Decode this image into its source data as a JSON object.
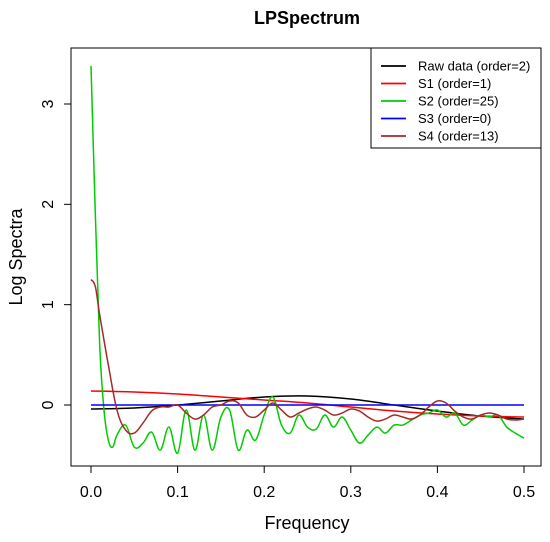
{
  "chart_data": {
    "type": "line",
    "title": "LPSpectrum",
    "xlabel": "Frequency",
    "ylabel": "Log Spectra",
    "xlim": [
      0,
      0.5
    ],
    "ylim": [
      -0.5,
      3.5
    ],
    "x_ticks": [
      0.0,
      0.1,
      0.2,
      0.3,
      0.4,
      0.5
    ],
    "x_tick_labels": [
      "0.0",
      "0.1",
      "0.2",
      "0.3",
      "0.4",
      "0.5"
    ],
    "y_ticks": [
      0,
      1,
      2,
      3
    ],
    "y_tick_labels": [
      "0",
      "1",
      "2",
      "3"
    ],
    "grid": false,
    "legend_position": "top-right",
    "series": [
      {
        "name": "Raw data (order=2)",
        "color": "#000000",
        "x": [
          0.0,
          0.05,
          0.1,
          0.15,
          0.2,
          0.25,
          0.3,
          0.35,
          0.4,
          0.45,
          0.5
        ],
        "values": [
          -0.04,
          -0.03,
          0.0,
          0.04,
          0.08,
          0.09,
          0.06,
          0.0,
          -0.06,
          -0.11,
          -0.14
        ]
      },
      {
        "name": "S1 (order=1)",
        "color": "#ff0000",
        "x": [
          0.0,
          0.05,
          0.1,
          0.15,
          0.2,
          0.25,
          0.3,
          0.35,
          0.4,
          0.45,
          0.5
        ],
        "values": [
          0.14,
          0.13,
          0.11,
          0.08,
          0.05,
          0.02,
          -0.02,
          -0.06,
          -0.09,
          -0.11,
          -0.12
        ]
      },
      {
        "name": "S2 (order=25)",
        "color": "#00cc00",
        "x": [
          0.0,
          0.005,
          0.01,
          0.015,
          0.02,
          0.025,
          0.03,
          0.04,
          0.05,
          0.06,
          0.07,
          0.08,
          0.09,
          0.1,
          0.11,
          0.12,
          0.13,
          0.14,
          0.15,
          0.16,
          0.17,
          0.18,
          0.19,
          0.2,
          0.21,
          0.22,
          0.23,
          0.24,
          0.25,
          0.26,
          0.27,
          0.28,
          0.29,
          0.3,
          0.31,
          0.32,
          0.33,
          0.34,
          0.35,
          0.36,
          0.37,
          0.38,
          0.39,
          0.4,
          0.41,
          0.42,
          0.43,
          0.44,
          0.45,
          0.46,
          0.47,
          0.48,
          0.49,
          0.5
        ],
        "values": [
          3.38,
          1.9,
          0.6,
          -0.05,
          -0.35,
          -0.42,
          -0.3,
          -0.2,
          -0.42,
          -0.38,
          -0.27,
          -0.45,
          -0.22,
          -0.48,
          -0.05,
          -0.45,
          -0.1,
          -0.45,
          -0.12,
          -0.05,
          -0.45,
          -0.25,
          -0.35,
          -0.1,
          0.08,
          -0.2,
          -0.28,
          -0.1,
          -0.22,
          -0.24,
          -0.1,
          -0.22,
          -0.12,
          -0.25,
          -0.38,
          -0.3,
          -0.22,
          -0.28,
          -0.2,
          -0.2,
          -0.15,
          -0.1,
          -0.08,
          -0.05,
          -0.12,
          -0.08,
          -0.2,
          -0.15,
          -0.1,
          -0.12,
          -0.1,
          -0.22,
          -0.28,
          -0.33
        ]
      },
      {
        "name": "S3 (order=0)",
        "color": "#0000ff",
        "x": [
          0.0,
          0.5
        ],
        "values": [
          0.0,
          0.0
        ]
      },
      {
        "name": "S4 (order=13)",
        "color": "#a52a2a",
        "x": [
          0.0,
          0.005,
          0.01,
          0.02,
          0.03,
          0.04,
          0.05,
          0.06,
          0.07,
          0.08,
          0.09,
          0.1,
          0.11,
          0.12,
          0.13,
          0.14,
          0.15,
          0.16,
          0.17,
          0.18,
          0.19,
          0.2,
          0.21,
          0.22,
          0.23,
          0.24,
          0.25,
          0.26,
          0.27,
          0.28,
          0.29,
          0.3,
          0.31,
          0.32,
          0.33,
          0.34,
          0.35,
          0.36,
          0.37,
          0.38,
          0.39,
          0.4,
          0.41,
          0.42,
          0.43,
          0.44,
          0.45,
          0.46,
          0.47,
          0.48,
          0.49,
          0.5
        ],
        "values": [
          1.25,
          1.18,
          0.9,
          0.4,
          -0.05,
          -0.25,
          -0.28,
          -0.18,
          -0.06,
          -0.02,
          -0.02,
          0.0,
          -0.08,
          -0.14,
          -0.1,
          -0.02,
          0.0,
          0.04,
          0.02,
          -0.1,
          -0.12,
          -0.05,
          0.02,
          -0.05,
          -0.12,
          -0.08,
          -0.04,
          -0.02,
          -0.05,
          -0.1,
          -0.08,
          -0.04,
          -0.06,
          -0.12,
          -0.16,
          -0.14,
          -0.1,
          -0.12,
          -0.14,
          -0.1,
          -0.02,
          0.04,
          0.02,
          -0.06,
          -0.12,
          -0.14,
          -0.1,
          -0.08,
          -0.1,
          -0.14,
          -0.15,
          -0.14
        ]
      }
    ]
  }
}
